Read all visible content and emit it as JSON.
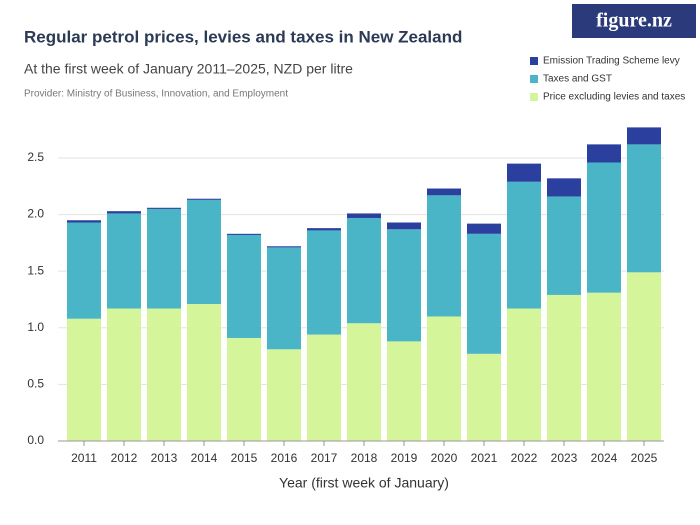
{
  "logo": "figure.nz",
  "chart_data": {
    "type": "stacked_bar",
    "title": "Regular petrol prices, levies and taxes in New Zealand",
    "subtitle": "At the first week of January 2011–2025, NZD per litre",
    "provider": "Provider: Ministry of Business, Innovation, and Employment",
    "x_label": "Year (first week of January)",
    "categories": [
      "2011",
      "2012",
      "2013",
      "2014",
      "2015",
      "2016",
      "2017",
      "2018",
      "2019",
      "2020",
      "2021",
      "2022",
      "2023",
      "2024",
      "2025"
    ],
    "series": [
      {
        "name": "Emission Trading Scheme levy",
        "color": "#2a3f9e",
        "values": [
          0.02,
          0.02,
          0.01,
          0.01,
          0.01,
          0.01,
          0.02,
          0.04,
          0.06,
          0.06,
          0.09,
          0.16,
          0.16,
          0.16,
          0.15
        ]
      },
      {
        "name": "Taxes and GST",
        "color": "#4bb5c8",
        "values": [
          0.85,
          0.84,
          0.88,
          0.92,
          0.91,
          0.9,
          0.92,
          0.93,
          0.99,
          1.07,
          1.06,
          1.12,
          0.87,
          1.15,
          1.13
        ]
      },
      {
        "name": "Price excluding levies and taxes",
        "color": "#d4f59a",
        "values": [
          1.08,
          1.17,
          1.17,
          1.21,
          0.91,
          0.81,
          0.94,
          1.04,
          0.88,
          1.1,
          0.77,
          1.17,
          1.29,
          1.31,
          1.49
        ]
      }
    ],
    "ylim": [
      0,
      2.8
    ],
    "yticks": [
      {
        "value": 0,
        "label": "0.0"
      },
      0.5,
      {
        "value": 1,
        "label": "1.0"
      },
      1.5,
      {
        "value": 2,
        "label": "2.0"
      },
      2.5
    ],
    "grid": true,
    "legend": "top-right"
  }
}
